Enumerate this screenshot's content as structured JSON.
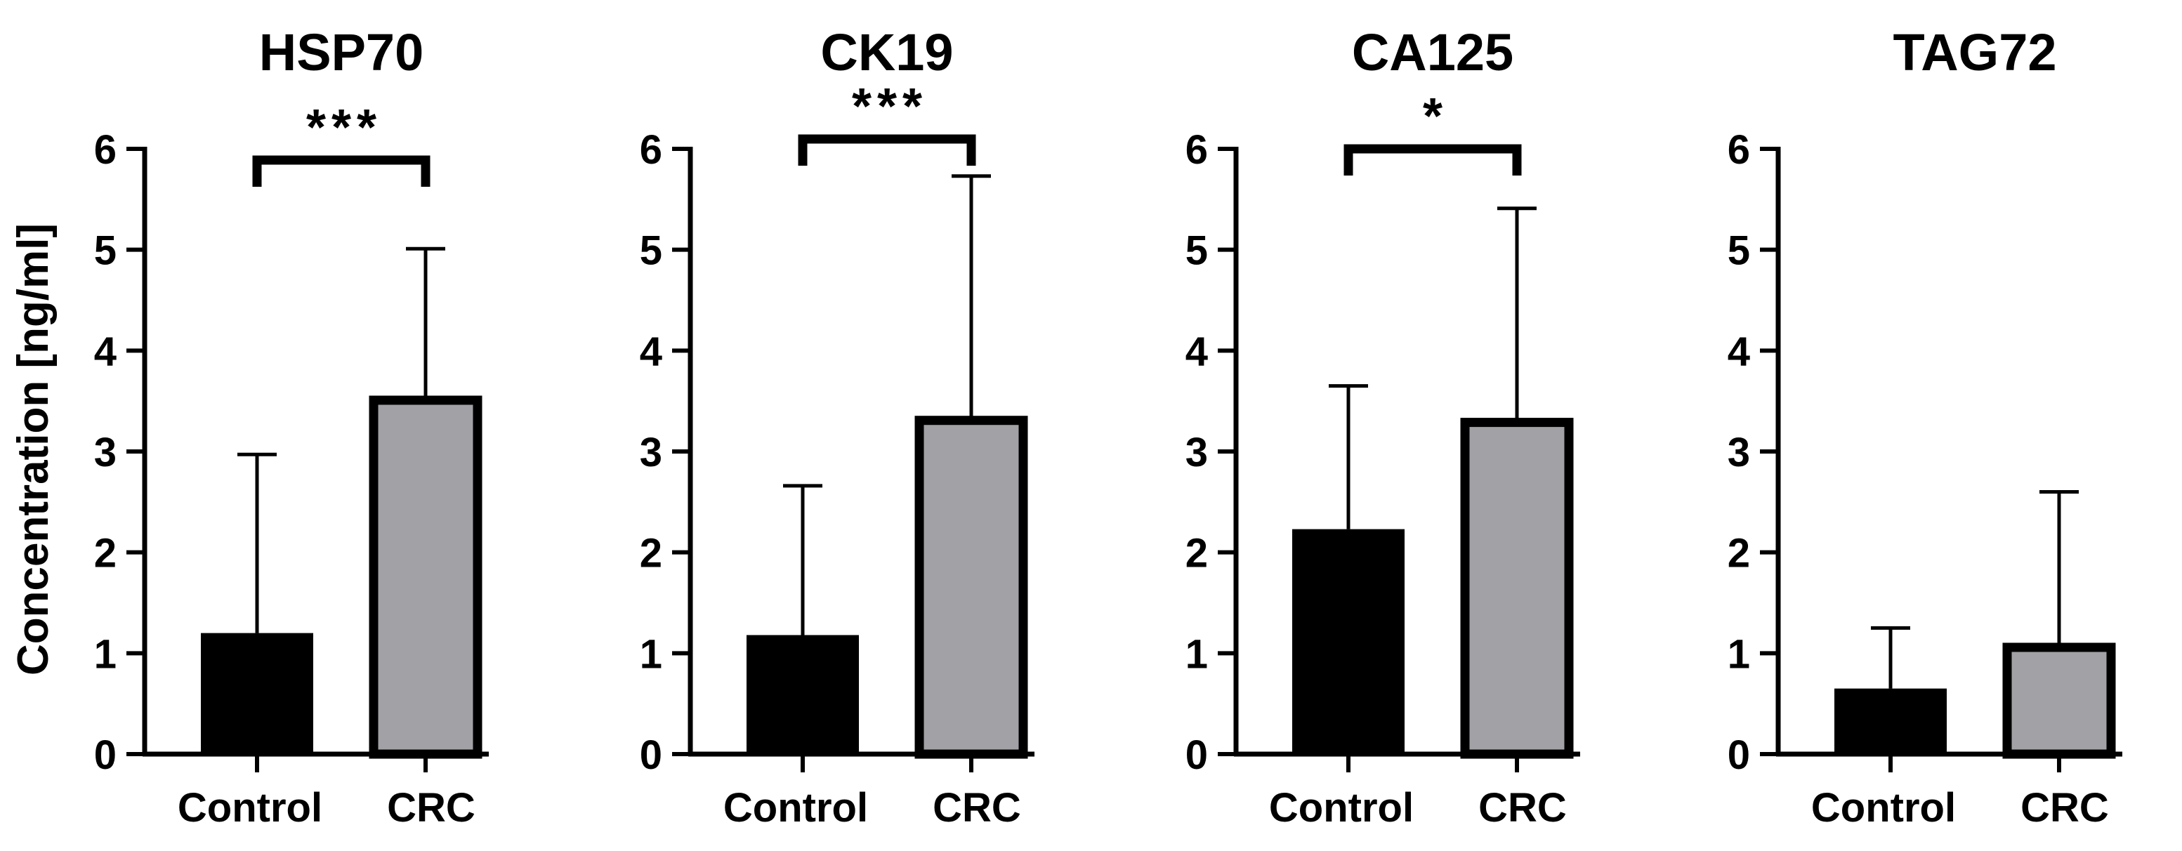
{
  "ylabel": "Concentration [ng/ml]",
  "colors": {
    "control": "#000000",
    "crc": "#a2a1a6",
    "outline": "#000000"
  },
  "chart_data": [
    {
      "type": "bar",
      "title": "HSP70",
      "categories": [
        "Control",
        "CRC"
      ],
      "values": [
        1.2,
        3.55
      ],
      "error": [
        1.77,
        1.46
      ],
      "ylim": [
        0,
        6
      ],
      "yticks": [
        "0",
        "1",
        "2",
        "3",
        "4",
        "5",
        "6"
      ],
      "significance": "***",
      "ylabel": "Concentration [ng/ml]"
    },
    {
      "type": "bar",
      "title": "CK19",
      "categories": [
        "Control",
        "CRC"
      ],
      "values": [
        1.18,
        3.35
      ],
      "error": [
        1.48,
        2.38
      ],
      "ylim": [
        0,
        6
      ],
      "yticks": [
        "0",
        "1",
        "2",
        "3",
        "4",
        "5",
        "6"
      ],
      "significance": "***"
    },
    {
      "type": "bar",
      "title": "CA125",
      "categories": [
        "Control",
        "CRC"
      ],
      "values": [
        2.23,
        3.33
      ],
      "error": [
        1.42,
        2.08
      ],
      "ylim": [
        0,
        6
      ],
      "yticks": [
        "0",
        "1",
        "2",
        "3",
        "4",
        "5",
        "6"
      ],
      "significance": "*"
    },
    {
      "type": "bar",
      "title": "TAG72",
      "categories": [
        "Control",
        "CRC"
      ],
      "values": [
        0.65,
        1.1
      ],
      "error": [
        0.6,
        1.5
      ],
      "ylim": [
        0,
        6
      ],
      "yticks": [
        "0",
        "1",
        "2",
        "3",
        "4",
        "5",
        "6"
      ],
      "significance": ""
    }
  ]
}
